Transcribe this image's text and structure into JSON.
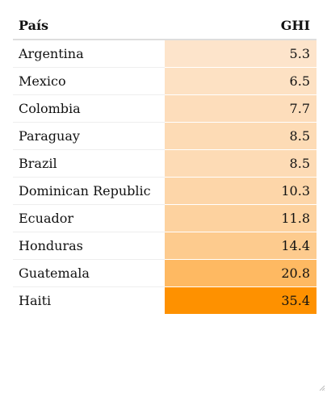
{
  "chart_data": {
    "type": "table",
    "columns": [
      "País",
      "GHI"
    ],
    "rows": [
      {
        "country": "Argentina",
        "ghi": "5.3"
      },
      {
        "country": "Mexico",
        "ghi": "6.5"
      },
      {
        "country": "Colombia",
        "ghi": "7.7"
      },
      {
        "country": "Paraguay",
        "ghi": "8.5"
      },
      {
        "country": "Brazil",
        "ghi": "8.5"
      },
      {
        "country": "Dominican Republic",
        "ghi": "10.3"
      },
      {
        "country": "Ecuador",
        "ghi": "11.8"
      },
      {
        "country": "Honduras",
        "ghi": "14.4"
      },
      {
        "country": "Guatemala",
        "ghi": "20.8"
      },
      {
        "country": "Haiti",
        "ghi": "35.4"
      }
    ],
    "color_scale": {
      "low_color": "#fde4cb",
      "high_color": "#fe9100"
    }
  }
}
